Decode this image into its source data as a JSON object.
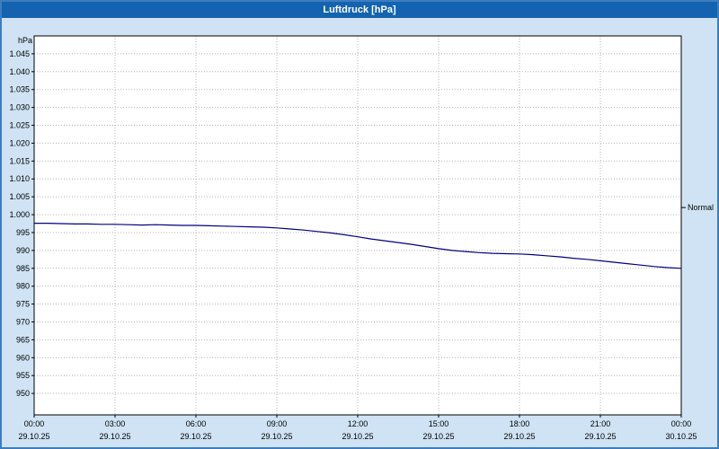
{
  "window": {
    "title": "Luftdruck [hPa]"
  },
  "colors": {
    "titlebar": "#1463b0",
    "titlebar_text": "#ffffff",
    "page_bg": "#cfe3f4",
    "page_border": "#3d7dbf",
    "plot_bg": "#ffffff",
    "plot_border": "#000000",
    "grid": "#b4b4b4",
    "tick_text": "#000000",
    "line": "#000080"
  },
  "y_axis": {
    "unit": "hPa",
    "min": 944,
    "max": 1050,
    "ticks": [
      {
        "value": 1045,
        "label": "1.045"
      },
      {
        "value": 1040,
        "label": "1.040"
      },
      {
        "value": 1035,
        "label": "1.035"
      },
      {
        "value": 1030,
        "label": "1.030"
      },
      {
        "value": 1025,
        "label": "1.025"
      },
      {
        "value": 1020,
        "label": "1.020"
      },
      {
        "value": 1015,
        "label": "1.015"
      },
      {
        "value": 1010,
        "label": "1.010"
      },
      {
        "value": 1005,
        "label": "1.005"
      },
      {
        "value": 1000,
        "label": "1.000"
      },
      {
        "value": 995,
        "label": "995"
      },
      {
        "value": 990,
        "label": "990"
      },
      {
        "value": 985,
        "label": "985"
      },
      {
        "value": 980,
        "label": "980"
      },
      {
        "value": 975,
        "label": "975"
      },
      {
        "value": 970,
        "label": "970"
      },
      {
        "value": 965,
        "label": "965"
      },
      {
        "value": 960,
        "label": "960"
      },
      {
        "value": 955,
        "label": "955"
      },
      {
        "value": 950,
        "label": "950"
      }
    ]
  },
  "x_axis": {
    "hours_min": 0,
    "hours_max": 24,
    "ticks": [
      {
        "hour": 0,
        "time": "00:00",
        "date": "29.10.25"
      },
      {
        "hour": 3,
        "time": "03:00",
        "date": "29.10.25"
      },
      {
        "hour": 6,
        "time": "06:00",
        "date": "29.10.25"
      },
      {
        "hour": 9,
        "time": "09:00",
        "date": "29.10.25"
      },
      {
        "hour": 12,
        "time": "12:00",
        "date": "29.10.25"
      },
      {
        "hour": 15,
        "time": "15:00",
        "date": "29.10.25"
      },
      {
        "hour": 18,
        "time": "18:00",
        "date": "29.10.25"
      },
      {
        "hour": 21,
        "time": "21:00",
        "date": "29.10.25"
      },
      {
        "hour": 24,
        "time": "00:00",
        "date": "30.10.25"
      }
    ]
  },
  "normal_marker": {
    "label": "Normal",
    "value": 1002
  },
  "chart_data": {
    "type": "line",
    "title": "Luftdruck [hPa]",
    "xlabel": "",
    "ylabel": "hPa",
    "ylim": [
      944,
      1050
    ],
    "grid": true,
    "legend_position": "none",
    "series_name": "Luftdruck",
    "x_hours": [
      0,
      0.5,
      1,
      1.5,
      2,
      2.5,
      3,
      3.5,
      4,
      4.5,
      5,
      5.5,
      6,
      6.5,
      7,
      7.5,
      8,
      8.5,
      9,
      9.5,
      10,
      10.5,
      11,
      11.5,
      12,
      12.5,
      13,
      13.5,
      14,
      14.5,
      15,
      15.5,
      16,
      16.5,
      17,
      17.5,
      18,
      18.5,
      19,
      19.5,
      20,
      20.5,
      21,
      21.5,
      22,
      22.5,
      23,
      23.5,
      24
    ],
    "values": [
      997.6,
      997.6,
      997.5,
      997.4,
      997.4,
      997.3,
      997.3,
      997.2,
      997.1,
      997.2,
      997.1,
      997.0,
      997.0,
      996.9,
      996.8,
      996.7,
      996.6,
      996.5,
      996.3,
      996.0,
      995.7,
      995.3,
      994.9,
      994.4,
      993.8,
      993.2,
      992.7,
      992.2,
      991.7,
      991.1,
      990.5,
      990.0,
      989.7,
      989.4,
      989.2,
      989.1,
      989.0,
      988.8,
      988.5,
      988.2,
      987.8,
      987.5,
      987.1,
      986.7,
      986.3,
      985.9,
      985.5,
      985.2,
      985.0
    ],
    "annotations": [
      {
        "label": "Normal",
        "y": 1002,
        "position": "right-axis"
      }
    ]
  }
}
